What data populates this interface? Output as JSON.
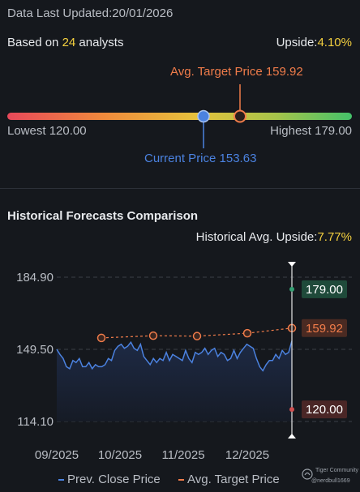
{
  "header": {
    "updated_label": "Data Last Updated:",
    "updated_value": "20/01/2026"
  },
  "analysts": {
    "prefix": "Based on ",
    "count": "24",
    "suffix": " analysts",
    "upside_label": "Upside:",
    "upside_value": "4.10%"
  },
  "range": {
    "avg_target_label": "Avg. Target Price 159.92",
    "lowest_label": "Lowest 120.00",
    "highest_label": "Highest 179.00",
    "current_label": "Current Price 153.63",
    "low": 120.0,
    "high": 179.0,
    "current": 153.63,
    "avg_target": 159.92
  },
  "historical": {
    "title": "Historical Forecasts Comparison",
    "upside_label": "Historical Avg. Upside:",
    "upside_value": "7.77%"
  },
  "chart_data": {
    "type": "line",
    "y_ticks": [
      "184.90",
      "149.50",
      "114.10"
    ],
    "y_tick_values": [
      184.9,
      149.5,
      114.1
    ],
    "ylim": [
      114.1,
      184.9
    ],
    "x_ticks": [
      "09/2025",
      "10/2025",
      "11/2025",
      "12/2025"
    ],
    "series": [
      {
        "name": "Prev. Close Price",
        "values": [
          149.5,
          147,
          145,
          141,
          140,
          144,
          143,
          145,
          141,
          141,
          143,
          140,
          142,
          141,
          141,
          142,
          145,
          144,
          149,
          151,
          152,
          150,
          151,
          153,
          150,
          149,
          152,
          146,
          144,
          142,
          145,
          143,
          145,
          144,
          148,
          144,
          147,
          146,
          145,
          144,
          149,
          145,
          143,
          148,
          147,
          148,
          150,
          147,
          149,
          150,
          146,
          148,
          147,
          144,
          145,
          149,
          145,
          148,
          150,
          152,
          151,
          150,
          145,
          141,
          139,
          142,
          144,
          144,
          147,
          145,
          149,
          147,
          148,
          153.63
        ]
      },
      {
        "name": "Avg. Target Price",
        "values": [
          155.1,
          156.2,
          156.0,
          157.4,
          159.92
        ]
      }
    ],
    "end_labels": {
      "high": "179.00",
      "avg": "159.92",
      "low": "120.00"
    },
    "colors": {
      "price_line": "#4b82e0",
      "target_line": "#f07c4a",
      "high_bg": "#1f4a3a",
      "avg_bg": "#4a2a22",
      "low_bg": "#4a2626",
      "high_dot": "#35a073",
      "low_dot": "#d05050"
    }
  },
  "legend": {
    "price": "Prev. Close Price",
    "target": "Avg. Target Price"
  },
  "watermark": {
    "brand": "Tiger Community",
    "user": "@nerdbull1669"
  }
}
